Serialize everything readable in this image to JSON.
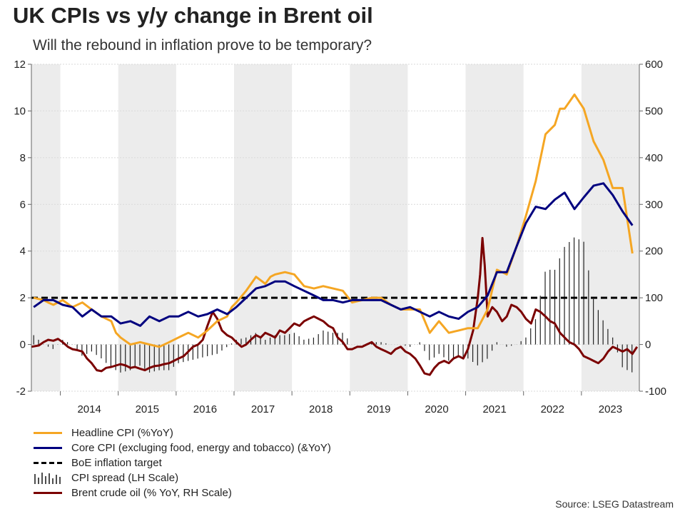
{
  "title": "UK CPIs vs y/y change in Brent oil",
  "subtitle": "Will the rebound in inflation prove to be temporary?",
  "source": "Source: LSEG Datastream",
  "colors": {
    "headline": "#f5a623",
    "core": "#00007f",
    "target": "#000000",
    "spread": "#222222",
    "brent": "#7b0000",
    "band": "#ececec",
    "grid": "#d9d9d9"
  },
  "chart_data": {
    "type": "line",
    "x_start": 2013.5,
    "x_end": 2024.0,
    "years": [
      "2014",
      "2015",
      "2016",
      "2017",
      "2018",
      "2019",
      "2020",
      "2021",
      "2022",
      "2023"
    ],
    "ylim_left": [
      -2,
      12
    ],
    "yticks_left": [
      -2,
      0,
      2,
      4,
      6,
      8,
      10,
      12
    ],
    "ylim_right": [
      -100,
      600
    ],
    "yticks_right": [
      -100,
      0,
      100,
      200,
      300,
      400,
      500,
      600
    ],
    "target_value": 2.0,
    "series": [
      {
        "name": "Headline CPI (%YoY)",
        "axis": "left",
        "x": [
          2013.54,
          2013.71,
          2013.79,
          2013.88,
          2013.96,
          2014.04,
          2014.21,
          2014.38,
          2014.54,
          2014.71,
          2014.88,
          2014.96,
          2015.04,
          2015.21,
          2015.38,
          2015.54,
          2015.71,
          2015.88,
          2016.04,
          2016.21,
          2016.38,
          2016.54,
          2016.71,
          2016.88,
          2016.96,
          2017.04,
          2017.21,
          2017.38,
          2017.54,
          2017.63,
          2017.71,
          2017.88,
          2018.04,
          2018.21,
          2018.38,
          2018.54,
          2018.71,
          2018.88,
          2019.04,
          2019.21,
          2019.38,
          2019.54,
          2019.71,
          2019.88,
          2020.04,
          2020.21,
          2020.38,
          2020.54,
          2020.71,
          2020.88,
          2021.04,
          2021.21,
          2021.38,
          2021.54,
          2021.63,
          2021.71,
          2021.88,
          2022.04,
          2022.21,
          2022.38,
          2022.54,
          2022.63,
          2022.71,
          2022.88,
          2023.04,
          2023.21,
          2023.38,
          2023.54,
          2023.71,
          2023.88
        ],
        "values": [
          2.0,
          1.9,
          1.8,
          1.7,
          1.8,
          1.9,
          1.6,
          1.8,
          1.5,
          1.2,
          1.0,
          0.5,
          0.3,
          0.0,
          0.1,
          0.0,
          -0.1,
          0.1,
          0.3,
          0.5,
          0.3,
          0.6,
          1.0,
          1.2,
          1.6,
          1.8,
          2.3,
          2.9,
          2.6,
          2.9,
          3.0,
          3.1,
          3.0,
          2.5,
          2.4,
          2.5,
          2.4,
          2.3,
          1.8,
          1.9,
          2.0,
          2.0,
          1.7,
          1.5,
          1.5,
          1.5,
          0.5,
          1.0,
          0.5,
          0.6,
          0.7,
          0.7,
          1.5,
          3.2,
          3.1,
          3.0,
          4.2,
          5.5,
          7.0,
          9.0,
          9.4,
          10.1,
          10.1,
          10.7,
          10.1,
          8.7,
          7.9,
          6.7,
          6.7,
          3.9
        ],
        "color": "#f5a623"
      },
      {
        "name": "Core CPI (excluging food, energy and tobacco) (&YoY)",
        "axis": "left",
        "x": [
          2013.54,
          2013.71,
          2013.88,
          2014.04,
          2014.21,
          2014.38,
          2014.54,
          2014.71,
          2014.88,
          2015.04,
          2015.21,
          2015.38,
          2015.54,
          2015.71,
          2015.88,
          2016.04,
          2016.21,
          2016.38,
          2016.54,
          2016.71,
          2016.88,
          2017.04,
          2017.21,
          2017.38,
          2017.54,
          2017.71,
          2017.88,
          2018.04,
          2018.21,
          2018.38,
          2018.54,
          2018.71,
          2018.88,
          2019.04,
          2019.21,
          2019.38,
          2019.54,
          2019.71,
          2019.88,
          2020.04,
          2020.21,
          2020.38,
          2020.54,
          2020.71,
          2020.88,
          2021.04,
          2021.21,
          2021.38,
          2021.54,
          2021.71,
          2021.88,
          2022.04,
          2022.21,
          2022.38,
          2022.54,
          2022.71,
          2022.88,
          2023.04,
          2023.21,
          2023.38,
          2023.54,
          2023.71,
          2023.88
        ],
        "values": [
          1.6,
          1.9,
          1.9,
          1.7,
          1.6,
          1.2,
          1.5,
          1.2,
          1.2,
          0.9,
          1.0,
          0.8,
          1.2,
          1.0,
          1.2,
          1.2,
          1.4,
          1.2,
          1.3,
          1.5,
          1.3,
          1.6,
          2.0,
          2.4,
          2.5,
          2.7,
          2.7,
          2.5,
          2.3,
          2.1,
          1.9,
          1.9,
          1.8,
          1.9,
          1.9,
          1.9,
          1.9,
          1.7,
          1.5,
          1.6,
          1.4,
          1.2,
          1.4,
          1.2,
          1.1,
          1.4,
          1.6,
          2.1,
          3.1,
          3.1,
          4.2,
          5.2,
          5.9,
          5.8,
          6.2,
          6.5,
          5.8,
          6.3,
          6.8,
          6.9,
          6.4,
          5.7,
          5.1
        ],
        "color": "#00007f"
      },
      {
        "name": "CPI spread (LH Scale)",
        "axis": "left",
        "x": [
          2013.54,
          2013.71,
          2013.88,
          2014.04,
          2014.21,
          2014.38,
          2014.54,
          2014.71,
          2014.88,
          2015.04,
          2015.21,
          2015.38,
          2015.54,
          2015.71,
          2015.88,
          2016.04,
          2016.21,
          2016.38,
          2016.54,
          2016.71,
          2016.88,
          2017.04,
          2017.21,
          2017.38,
          2017.54,
          2017.71,
          2017.88,
          2018.04,
          2018.21,
          2018.38,
          2018.54,
          2018.71,
          2018.88,
          2019.04,
          2019.21,
          2019.38,
          2019.54,
          2019.71,
          2019.88,
          2020.04,
          2020.21,
          2020.38,
          2020.54,
          2020.71,
          2020.88,
          2021.04,
          2021.21,
          2021.38,
          2021.54,
          2021.71,
          2021.88,
          2022.04,
          2022.21,
          2022.38,
          2022.54,
          2022.71,
          2022.88,
          2023.04,
          2023.21,
          2023.38,
          2023.54,
          2023.71,
          2023.88
        ],
        "values": [
          0.4,
          0.0,
          -0.2,
          0.2,
          0.0,
          -0.5,
          -0.3,
          -0.6,
          -1.0,
          -1.2,
          -1.1,
          -0.9,
          -1.2,
          -1.1,
          -1.1,
          -0.8,
          -0.7,
          -0.6,
          -0.5,
          -0.4,
          -0.1,
          0.2,
          0.3,
          0.5,
          0.2,
          0.4,
          0.4,
          0.5,
          0.2,
          0.3,
          0.6,
          0.5,
          0.5,
          0.0,
          0.0,
          0.1,
          0.1,
          0.0,
          0.0,
          -0.1,
          0.1,
          -0.7,
          -0.4,
          -0.7,
          -0.5,
          -0.6,
          -0.9,
          -0.6,
          0.1,
          -0.1,
          0.0,
          0.3,
          1.1,
          3.2,
          3.2,
          4.2,
          4.6,
          4.4,
          1.9,
          1.0,
          0.3,
          -1.0,
          -1.2
        ],
        "color": "#222222"
      },
      {
        "name": "Brent crude oil (% YoY, RH Scale)",
        "axis": "right",
        "x": [
          2013.5,
          2013.63,
          2013.71,
          2013.79,
          2013.88,
          2013.96,
          2014.04,
          2014.13,
          2014.21,
          2014.29,
          2014.38,
          2014.46,
          2014.54,
          2014.63,
          2014.71,
          2014.79,
          2014.88,
          2014.96,
          2015.04,
          2015.13,
          2015.21,
          2015.29,
          2015.38,
          2015.46,
          2015.54,
          2015.63,
          2015.71,
          2015.79,
          2015.88,
          2015.96,
          2016.04,
          2016.13,
          2016.21,
          2016.29,
          2016.38,
          2016.46,
          2016.54,
          2016.63,
          2016.71,
          2016.79,
          2016.88,
          2016.96,
          2017.04,
          2017.13,
          2017.21,
          2017.29,
          2017.38,
          2017.46,
          2017.54,
          2017.63,
          2017.71,
          2017.79,
          2017.88,
          2017.96,
          2018.04,
          2018.13,
          2018.21,
          2018.29,
          2018.38,
          2018.46,
          2018.54,
          2018.63,
          2018.71,
          2018.79,
          2018.88,
          2018.96,
          2019.04,
          2019.13,
          2019.21,
          2019.29,
          2019.38,
          2019.46,
          2019.54,
          2019.63,
          2019.71,
          2019.79,
          2019.88,
          2019.96,
          2020.04,
          2020.13,
          2020.21,
          2020.29,
          2020.38,
          2020.46,
          2020.54,
          2020.63,
          2020.71,
          2020.79,
          2020.88,
          2020.96,
          2021.04,
          2021.13,
          2021.21,
          2021.25,
          2021.29,
          2021.33,
          2021.38,
          2021.46,
          2021.54,
          2021.63,
          2021.71,
          2021.79,
          2021.88,
          2021.96,
          2022.04,
          2022.13,
          2022.21,
          2022.29,
          2022.38,
          2022.46,
          2022.54,
          2022.63,
          2022.71,
          2022.79,
          2022.88,
          2022.96,
          2023.04,
          2023.13,
          2023.21,
          2023.29,
          2023.38,
          2023.46,
          2023.54,
          2023.63,
          2023.71,
          2023.79,
          2023.88,
          2023.96
        ],
        "values": [
          -5,
          -2,
          5,
          10,
          8,
          12,
          5,
          -5,
          -10,
          -12,
          -15,
          -30,
          -40,
          -55,
          -57,
          -50,
          -48,
          -45,
          -42,
          -45,
          -50,
          -48,
          -52,
          -55,
          -50,
          -46,
          -45,
          -42,
          -40,
          -35,
          -30,
          -25,
          -15,
          -5,
          0,
          10,
          40,
          70,
          55,
          30,
          20,
          15,
          5,
          -5,
          0,
          10,
          20,
          15,
          25,
          20,
          15,
          30,
          25,
          35,
          45,
          40,
          50,
          55,
          60,
          55,
          50,
          40,
          35,
          15,
          5,
          -10,
          -10,
          -5,
          -5,
          0,
          5,
          -5,
          -10,
          -15,
          -20,
          -10,
          -5,
          -15,
          -20,
          -30,
          -45,
          -62,
          -65,
          -50,
          -40,
          -35,
          -40,
          -30,
          -25,
          -30,
          -10,
          30,
          100,
          150,
          228,
          170,
          60,
          80,
          70,
          50,
          60,
          85,
          80,
          70,
          55,
          45,
          75,
          70,
          60,
          50,
          45,
          25,
          15,
          5,
          0,
          -10,
          -25,
          -30,
          -35,
          -40,
          -30,
          -15,
          -5,
          -10,
          -15,
          -10,
          -20,
          -5
        ],
        "color": "#7b0000"
      }
    ]
  },
  "legend": [
    {
      "label": "Headline CPI (%YoY)",
      "icon": "solid-line-icon"
    },
    {
      "label": "Core CPI (excluging food, energy and tobacco) (&YoY)",
      "icon": "solid-line-icon"
    },
    {
      "label": "BoE inflation target",
      "icon": "dashed-line-icon"
    },
    {
      "label": "CPI spread (LH Scale)",
      "icon": "vertical-bars-icon"
    },
    {
      "label": "Brent crude oil (% YoY, RH Scale)",
      "icon": "solid-line-icon"
    }
  ]
}
